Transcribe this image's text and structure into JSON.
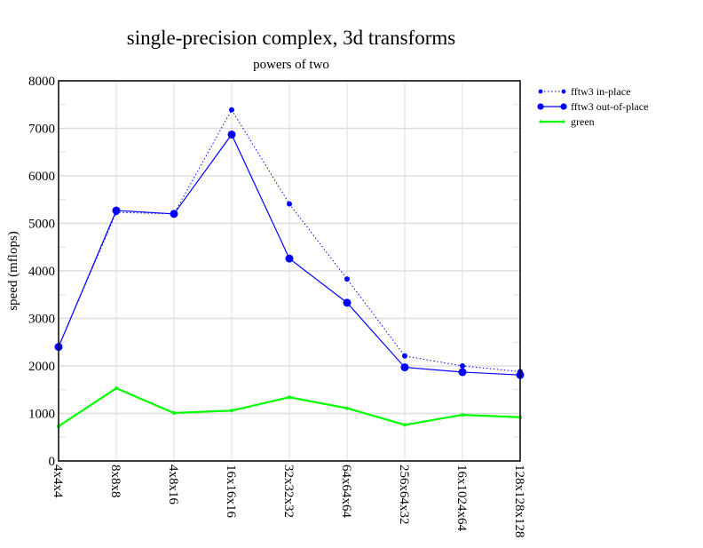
{
  "chart_data": {
    "type": "line",
    "title": "single-precision complex, 3d transforms",
    "subtitle": "powers of two",
    "xlabel": "",
    "ylabel": "speed (mflops)",
    "ylim": [
      0,
      8000
    ],
    "yticks": [
      0,
      1000,
      2000,
      3000,
      4000,
      5000,
      6000,
      7000,
      8000
    ],
    "grid": true,
    "legend_position": "right-top-outside",
    "categories": [
      "4x4x4",
      "8x8x8",
      "4x8x16",
      "16x16x16",
      "32x32x32",
      "64x64x64",
      "256x64x32",
      "16x1024x64",
      "128x128x128"
    ],
    "series": [
      {
        "name": "fftw3 in-place",
        "color": "#0000ff",
        "style": "dotted",
        "marker": "small",
        "values": [
          2400,
          5230,
          5200,
          7390,
          5410,
          3830,
          2210,
          2000,
          1880
        ]
      },
      {
        "name": "fftw3 out-of-place",
        "color": "#0000ff",
        "style": "solid",
        "marker": "large",
        "values": [
          2400,
          5270,
          5200,
          6870,
          4260,
          3330,
          1970,
          1870,
          1810
        ]
      },
      {
        "name": "green",
        "color": "#00ff00",
        "style": "solid-thick",
        "marker": "tiny",
        "values": [
          730,
          1530,
          1010,
          1060,
          1340,
          1110,
          760,
          970,
          920
        ]
      }
    ]
  }
}
